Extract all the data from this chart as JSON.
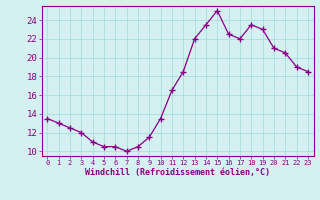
{
  "x": [
    0,
    1,
    2,
    3,
    4,
    5,
    6,
    7,
    8,
    9,
    10,
    11,
    12,
    13,
    14,
    15,
    16,
    17,
    18,
    19,
    20,
    21,
    22,
    23
  ],
  "y": [
    13.5,
    13.0,
    12.5,
    12.0,
    11.0,
    10.5,
    10.5,
    10.0,
    10.5,
    11.5,
    13.5,
    16.5,
    18.5,
    22.0,
    23.5,
    25.0,
    22.5,
    22.0,
    23.5,
    23.0,
    21.0,
    20.5,
    19.0,
    18.5
  ],
  "xlabel": "Windchill (Refroidissement éolien,°C)",
  "ylim": [
    9.5,
    25.5
  ],
  "xlim": [
    -0.5,
    23.5
  ],
  "yticks": [
    10,
    12,
    14,
    16,
    18,
    20,
    22,
    24
  ],
  "xticks": [
    0,
    1,
    2,
    3,
    4,
    5,
    6,
    7,
    8,
    9,
    10,
    11,
    12,
    13,
    14,
    15,
    16,
    17,
    18,
    19,
    20,
    21,
    22,
    23
  ],
  "line_color": "#880088",
  "marker_color": "#880088",
  "bg_color": "#d4f0f0",
  "grid_color": "#aadddd",
  "axis_color": "#880088",
  "tick_label_color": "#880088",
  "xlabel_color": "#880088"
}
